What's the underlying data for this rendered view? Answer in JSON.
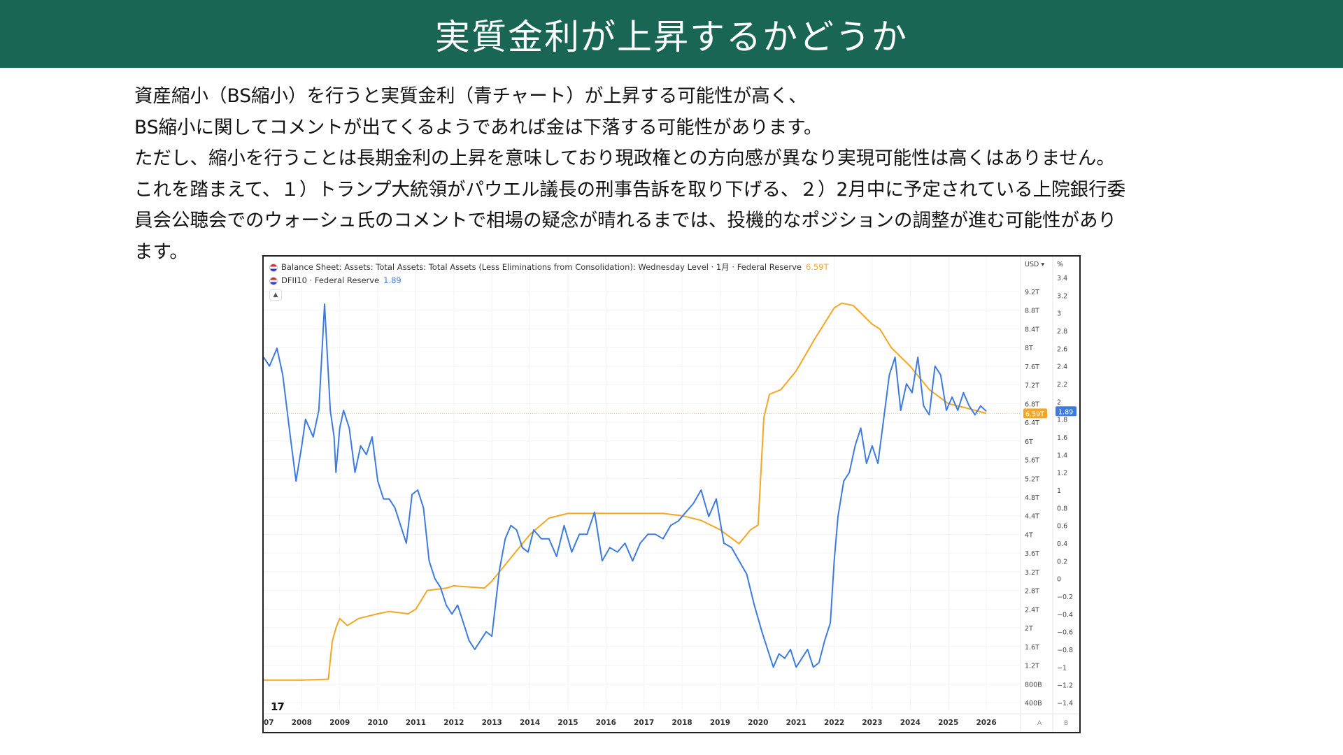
{
  "title": "実質金利が上昇するかどうか",
  "paragraphs": [
    "資産縮小（BS縮小）を行うと実質金利（青チャート）が上昇する可能性が高く、",
    "BS縮小に関してコメントが出てくるようであれば金は下落する可能性があります。",
    "ただし、縮小を行うことは長期金利の上昇を意味しており現政権との方向感が異なり実現可能性は高くはありません。",
    "これを踏まえて、１）トランプ大統領がパウエル議長の刑事告訴を取り下げる、２）2月中に予定されている上院銀行委",
    "員会公聴会でのウォーシュ氏のコメントで相場の疑念が晴れるまでは、投機的なポジションの調整が進む可能性があり",
    "ます。"
  ],
  "chart_data": {
    "type": "line",
    "legend": [
      {
        "label": "Balance Sheet: Assets: Total Assets: Total Assets (Less Eliminations from Consolidation): Wednesday Level · 1月 · Federal Reserve",
        "value": "6.59T",
        "color": "#f5a623"
      },
      {
        "label": "DFII10 · Federal Reserve",
        "value": "1.89",
        "color": "#3d7be0"
      }
    ],
    "left_axis_header": "USD",
    "right_axis_header": "%",
    "x_ticks": [
      "07",
      "2008",
      "2009",
      "2010",
      "2011",
      "2012",
      "2013",
      "2014",
      "2015",
      "2016",
      "2017",
      "2018",
      "2019",
      "2020",
      "2021",
      "2022",
      "2023",
      "2024",
      "2025",
      "2026"
    ],
    "left_ticks": [
      "400B",
      "800B",
      "1.2T",
      "1.6T",
      "2T",
      "2.4T",
      "2.8T",
      "3.2T",
      "3.6T",
      "4T",
      "4.4T",
      "4.8T",
      "5.2T",
      "5.6T",
      "6T",
      "6.4T",
      "6.8T",
      "7.2T",
      "7.6T",
      "8T",
      "8.4T",
      "8.8T",
      "9.2T"
    ],
    "right_ticks": [
      "-1.4",
      "-1.2",
      "-1",
      "-0.8",
      "-0.6",
      "-0.4",
      "-0.2",
      "0",
      "0.2",
      "0.4",
      "0.6",
      "0.8",
      "1",
      "1.2",
      "1.4",
      "1.6",
      "1.8",
      "2",
      "2.2",
      "2.4",
      "2.6",
      "2.8",
      "3",
      "3.2",
      "3.4"
    ],
    "left_ylim": [
      0.4,
      9.2
    ],
    "right_ylim": [
      -1.4,
      3.4
    ],
    "xlim": [
      2007.0,
      2026.9
    ],
    "last_value_left": "6.59T",
    "last_value_right": "1.89",
    "footer_marks": [
      "A",
      "B"
    ],
    "logo": "17",
    "series": [
      {
        "name": "Total Assets",
        "axis": "left",
        "color": "#f5a623",
        "x": [
          2007.0,
          2008.0,
          2008.7,
          2008.8,
          2008.9,
          2009.0,
          2009.2,
          2009.5,
          2010.0,
          2010.3,
          2010.8,
          2011.0,
          2011.3,
          2011.8,
          2012.0,
          2012.5,
          2012.8,
          2013.0,
          2013.5,
          2014.0,
          2014.5,
          2015.0,
          2016.0,
          2017.0,
          2017.5,
          2018.0,
          2018.5,
          2019.0,
          2019.5,
          2019.6,
          2019.8,
          2020.0,
          2020.15,
          2020.3,
          2020.6,
          2021.0,
          2021.5,
          2022.0,
          2022.2,
          2022.5,
          2023.0,
          2023.2,
          2023.5,
          2024.0,
          2024.5,
          2025.0,
          2025.5,
          2026.0
        ],
        "values": [
          0.88,
          0.88,
          0.9,
          1.7,
          2.0,
          2.2,
          2.05,
          2.2,
          2.3,
          2.35,
          2.3,
          2.4,
          2.8,
          2.85,
          2.9,
          2.87,
          2.85,
          3.0,
          3.5,
          4.0,
          4.35,
          4.45,
          4.45,
          4.45,
          4.45,
          4.4,
          4.3,
          4.1,
          3.8,
          3.9,
          4.1,
          4.2,
          6.5,
          7.0,
          7.1,
          7.5,
          8.2,
          8.85,
          8.95,
          8.9,
          8.5,
          8.4,
          8.0,
          7.6,
          7.1,
          6.8,
          6.7,
          6.59
        ]
      },
      {
        "name": "DFII10",
        "axis": "right",
        "color": "#3d7be0",
        "x": [
          2007.0,
          2007.15,
          2007.35,
          2007.5,
          2007.7,
          2007.85,
          2008.0,
          2008.1,
          2008.3,
          2008.45,
          2008.6,
          2008.75,
          2008.85,
          2008.9,
          2009.0,
          2009.1,
          2009.25,
          2009.4,
          2009.55,
          2009.7,
          2009.85,
          2010.0,
          2010.15,
          2010.3,
          2010.45,
          2010.6,
          2010.75,
          2010.9,
          2011.05,
          2011.2,
          2011.35,
          2011.5,
          2011.65,
          2011.8,
          2011.95,
          2012.1,
          2012.25,
          2012.4,
          2012.55,
          2012.7,
          2012.85,
          2013.0,
          2013.2,
          2013.35,
          2013.5,
          2013.65,
          2013.8,
          2013.95,
          2014.1,
          2014.3,
          2014.5,
          2014.7,
          2014.9,
          2015.1,
          2015.3,
          2015.5,
          2015.7,
          2015.9,
          2016.1,
          2016.3,
          2016.5,
          2016.7,
          2016.9,
          2017.1,
          2017.3,
          2017.5,
          2017.7,
          2017.9,
          2018.1,
          2018.3,
          2018.5,
          2018.7,
          2018.9,
          2019.1,
          2019.3,
          2019.5,
          2019.7,
          2019.9,
          2020.1,
          2020.25,
          2020.4,
          2020.55,
          2020.7,
          2020.85,
          2021.0,
          2021.15,
          2021.3,
          2021.45,
          2021.6,
          2021.75,
          2021.9,
          2022.0,
          2022.1,
          2022.25,
          2022.4,
          2022.55,
          2022.7,
          2022.85,
          2023.0,
          2023.15,
          2023.3,
          2023.45,
          2023.6,
          2023.75,
          2023.9,
          2024.05,
          2024.2,
          2024.35,
          2024.5,
          2024.65,
          2024.8,
          2024.95,
          2025.1,
          2025.25,
          2025.4,
          2025.55,
          2025.7,
          2025.85,
          2026.0
        ],
        "values": [
          2.5,
          2.4,
          2.6,
          2.3,
          1.6,
          1.1,
          1.5,
          1.8,
          1.6,
          1.9,
          3.1,
          1.9,
          1.6,
          1.2,
          1.7,
          1.9,
          1.7,
          1.2,
          1.5,
          1.4,
          1.6,
          1.1,
          0.9,
          0.9,
          0.8,
          0.6,
          0.4,
          0.95,
          1.0,
          0.8,
          0.2,
          0.0,
          -0.1,
          -0.3,
          -0.4,
          -0.3,
          -0.5,
          -0.7,
          -0.8,
          -0.7,
          -0.6,
          -0.65,
          0.1,
          0.45,
          0.6,
          0.55,
          0.35,
          0.3,
          0.55,
          0.45,
          0.45,
          0.25,
          0.6,
          0.3,
          0.5,
          0.5,
          0.75,
          0.2,
          0.35,
          0.3,
          0.4,
          0.2,
          0.4,
          0.5,
          0.5,
          0.45,
          0.6,
          0.65,
          0.75,
          0.85,
          1.0,
          0.7,
          0.9,
          0.4,
          0.35,
          0.2,
          0.05,
          -0.3,
          -0.6,
          -0.8,
          -1.0,
          -0.85,
          -0.9,
          -0.8,
          -1.0,
          -0.9,
          -0.8,
          -1.0,
          -0.95,
          -0.7,
          -0.5,
          0.2,
          0.7,
          1.1,
          1.2,
          1.5,
          1.7,
          1.3,
          1.5,
          1.3,
          1.8,
          2.3,
          2.5,
          1.9,
          2.2,
          2.1,
          2.5,
          1.95,
          1.85,
          2.4,
          2.3,
          1.9,
          2.05,
          1.9,
          2.1,
          1.95,
          1.85,
          1.95,
          1.89
        ]
      }
    ]
  }
}
